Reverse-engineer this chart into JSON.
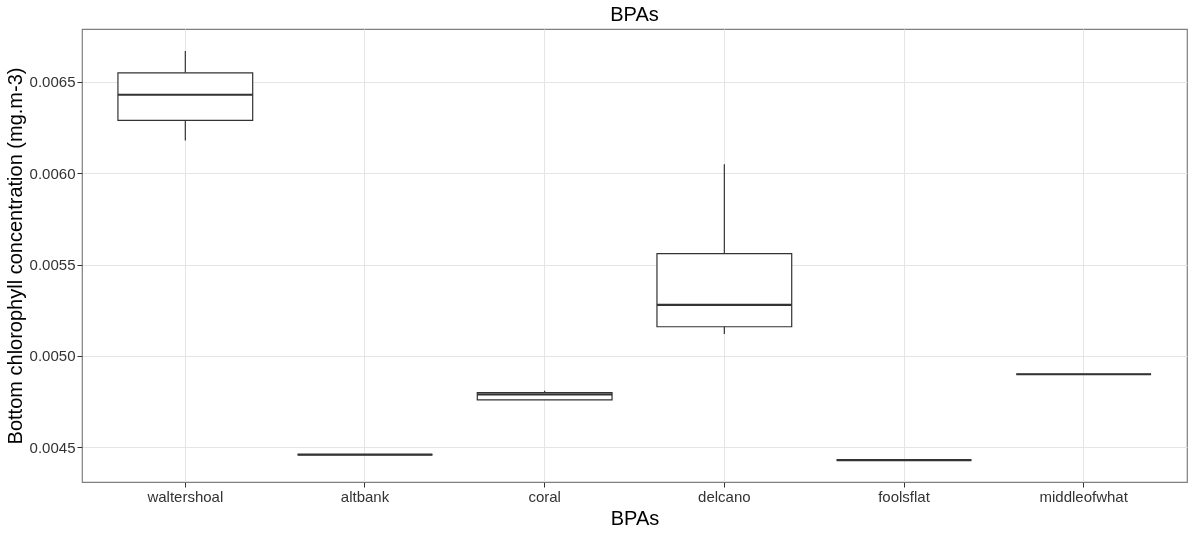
{
  "chart_data": {
    "type": "box",
    "title": "BPAs",
    "xlabel": "BPAs",
    "ylabel": "Bottom chlorophyll concentration (mg.m-3)",
    "categories": [
      "waltershoal",
      "altbank",
      "coral",
      "delcano",
      "foolsflat",
      "middleofwhat"
    ],
    "boxes": [
      {
        "low": 0.00618,
        "q1": 0.00629,
        "median": 0.00643,
        "q3": 0.00655,
        "high": 0.00667
      },
      {
        "low": 0.00446,
        "q1": 0.00446,
        "median": 0.00446,
        "q3": 0.00446,
        "high": 0.00446
      },
      {
        "low": 0.00476,
        "q1": 0.00476,
        "median": 0.00479,
        "q3": 0.0048,
        "high": 0.00481
      },
      {
        "low": 0.00512,
        "q1": 0.00516,
        "median": 0.00528,
        "q3": 0.00556,
        "high": 0.00605
      },
      {
        "low": 0.00443,
        "q1": 0.00443,
        "median": 0.00443,
        "q3": 0.00443,
        "high": 0.00443
      },
      {
        "low": 0.0049,
        "q1": 0.0049,
        "median": 0.0049,
        "q3": 0.0049,
        "high": 0.0049
      }
    ],
    "color": "#333333",
    "ylim": [
      0.00431,
      0.00679
    ],
    "yticks": [
      0.0045,
      {
        "value": 0.005,
        "label": "0.0050"
      },
      0.0055,
      {
        "value": 0.006,
        "label": "0.0060"
      },
      0.0065
    ],
    "grid": true
  }
}
